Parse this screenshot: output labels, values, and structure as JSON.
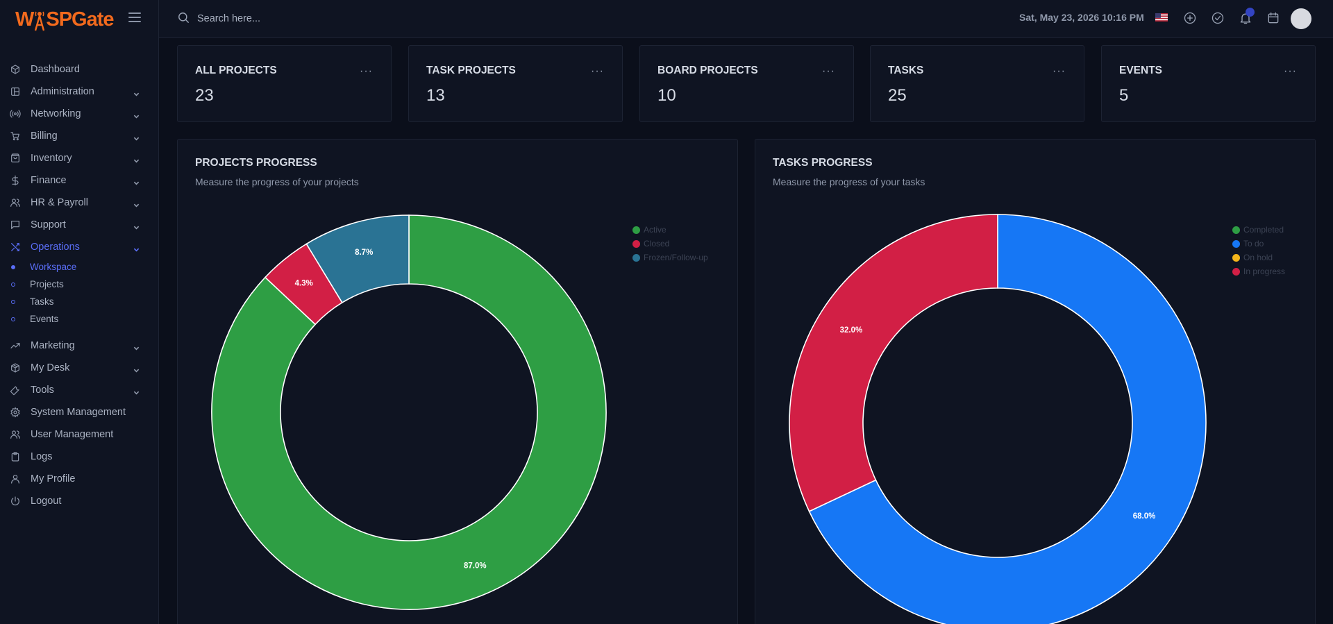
{
  "brand": {
    "name_prefix": "W",
    "name_mid": "SPGate",
    "icon": "antenna-icon"
  },
  "sidebar": {
    "items": [
      {
        "label": "Dashboard",
        "icon": "cube-icon",
        "expandable": false
      },
      {
        "label": "Administration",
        "icon": "layout-icon",
        "expandable": true
      },
      {
        "label": "Networking",
        "icon": "broadcast-icon",
        "expandable": true
      },
      {
        "label": "Billing",
        "icon": "cart-icon",
        "expandable": true
      },
      {
        "label": "Inventory",
        "icon": "bag-icon",
        "expandable": true
      },
      {
        "label": "Finance",
        "icon": "dollar-icon",
        "expandable": true
      },
      {
        "label": "HR & Payroll",
        "icon": "users-icon",
        "expandable": true
      },
      {
        "label": "Support",
        "icon": "chat-icon",
        "expandable": true
      },
      {
        "label": "Operations",
        "icon": "shuffle-icon",
        "expandable": true,
        "active": true
      }
    ],
    "operations_sub": [
      {
        "label": "Workspace",
        "active": true
      },
      {
        "label": "Projects"
      },
      {
        "label": "Tasks"
      },
      {
        "label": "Events"
      }
    ],
    "items_after": [
      {
        "label": "Marketing",
        "icon": "trending-icon",
        "expandable": true
      },
      {
        "label": "My Desk",
        "icon": "box-icon",
        "expandable": true
      },
      {
        "label": "Tools",
        "icon": "wrench-icon",
        "expandable": true
      },
      {
        "label": "System Management",
        "icon": "gear-icon",
        "expandable": false
      },
      {
        "label": "User Management",
        "icon": "users-icon",
        "expandable": false
      },
      {
        "label": "Logs",
        "icon": "clipboard-icon",
        "expandable": false
      },
      {
        "label": "My Profile",
        "icon": "user-icon",
        "expandable": false
      },
      {
        "label": "Logout",
        "icon": "power-icon",
        "expandable": false
      }
    ]
  },
  "topbar": {
    "search_placeholder": "Search here...",
    "datetime": "Sat, May 23, 2026 10:16 PM",
    "icons": [
      "us-flag-icon",
      "plus-circle-icon",
      "check-circle-icon",
      "bell-icon",
      "calendar-icon",
      "avatar"
    ]
  },
  "stats": [
    {
      "title": "ALL PROJECTS",
      "value": "23"
    },
    {
      "title": "TASK PROJECTS",
      "value": "13"
    },
    {
      "title": "BOARD PROJECTS",
      "value": "10"
    },
    {
      "title": "TASKS",
      "value": "25"
    },
    {
      "title": "EVENTS",
      "value": "5"
    }
  ],
  "stat_more": "···",
  "colors": {
    "accent": "#5a6ef7",
    "brand": "#f26a1d",
    "green": "#2e9e44",
    "red": "#d21f45",
    "teal": "#2a7394",
    "blue": "#1677f5",
    "amber": "#f3b51b"
  },
  "panels": {
    "projects": {
      "title": "PROJECTS PROGRESS",
      "subtitle": "Measure the progress of your projects"
    },
    "tasks": {
      "title": "TASKS PROGRESS",
      "subtitle": "Measure the progress of your tasks"
    }
  },
  "chart_data": [
    {
      "type": "pie",
      "variant": "doughnut",
      "title": "PROJECTS PROGRESS",
      "labels": [
        "Active",
        "Closed",
        "Frozen/Follow-up"
      ],
      "values": [
        87.0,
        4.3,
        8.7
      ],
      "value_labels": [
        "87.0%",
        "4.3%",
        "8.7%"
      ],
      "colors": [
        "#2e9e44",
        "#d21f45",
        "#2a7394"
      ],
      "start": "top",
      "direction": "clockwise",
      "legend": "top-right"
    },
    {
      "type": "pie",
      "variant": "doughnut",
      "title": "TASKS PROGRESS",
      "labels": [
        "Completed",
        "To do",
        "On hold",
        "In progress"
      ],
      "values": [
        0,
        68.0,
        0,
        32.0
      ],
      "value_labels": [
        "",
        "68.0%",
        "",
        "32.0%"
      ],
      "colors": [
        "#2e9e44",
        "#1677f5",
        "#f3b51b",
        "#d21f45"
      ],
      "start": "top",
      "direction": "clockwise",
      "legend": "top-right"
    }
  ]
}
